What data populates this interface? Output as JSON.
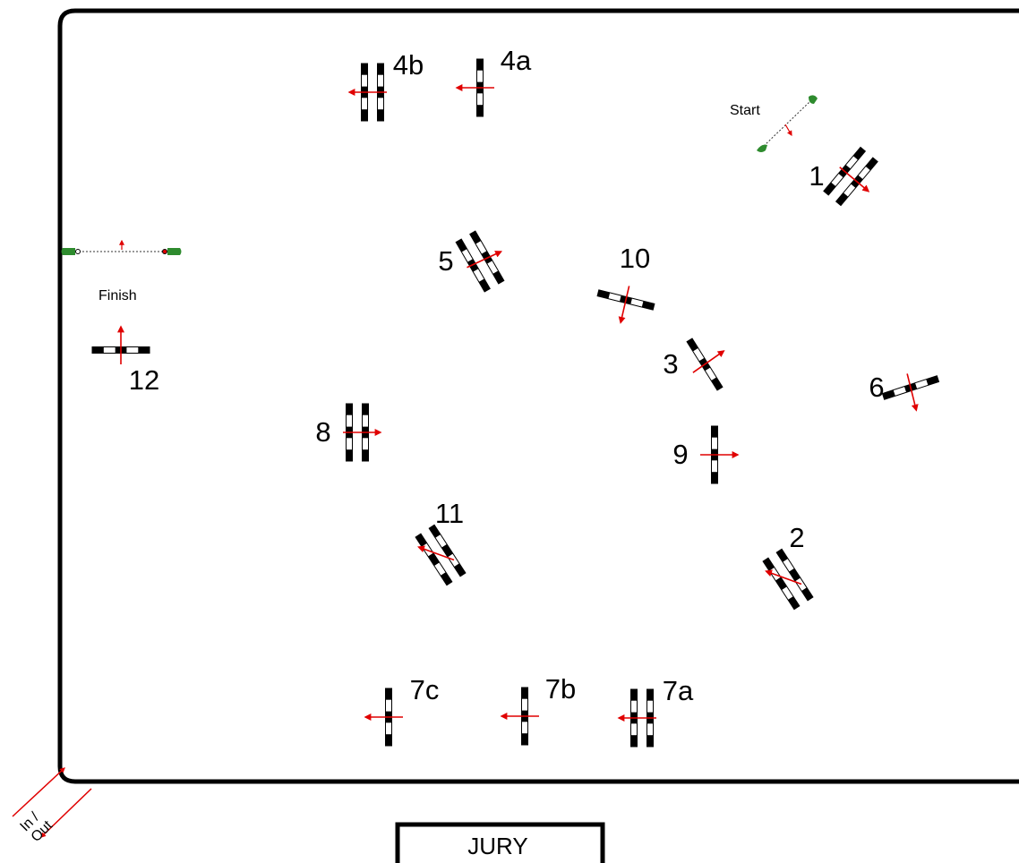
{
  "arena": {
    "jury_label": "JURY",
    "gate_label_line1": "In /",
    "gate_label_line2": "Out"
  },
  "start": {
    "label": "Start"
  },
  "finish": {
    "label": "Finish"
  },
  "colors": {
    "pole_dark": "#000000",
    "pole_light": "#ffffff",
    "arrow": "#e00000",
    "flag": "#2e8b2e",
    "border": "#000000"
  },
  "obstacles": [
    {
      "id": "1",
      "label": "1",
      "type": "oxer",
      "angle_deg": 40,
      "arrow_deg": 40,
      "label_pos": "left"
    },
    {
      "id": "2",
      "label": "2",
      "type": "oxer",
      "angle_deg": -33,
      "arrow_deg": 200,
      "label_pos": "above"
    },
    {
      "id": "3",
      "label": "3",
      "type": "vertical",
      "angle_deg": -32,
      "arrow_deg": 325,
      "label_pos": "left"
    },
    {
      "id": "4a",
      "label": "4a",
      "type": "vertical",
      "angle_deg": 0,
      "arrow_deg": 180,
      "label_pos": "right"
    },
    {
      "id": "4b",
      "label": "4b",
      "type": "oxer",
      "angle_deg": 0,
      "arrow_deg": 180,
      "label_pos": "right"
    },
    {
      "id": "5",
      "label": "5",
      "type": "oxer",
      "angle_deg": -30,
      "arrow_deg": 335,
      "label_pos": "left"
    },
    {
      "id": "6",
      "label": "6",
      "type": "vertical",
      "angle_deg": 72,
      "arrow_deg": 76,
      "label_pos": "left"
    },
    {
      "id": "7a",
      "label": "7a",
      "type": "oxer",
      "angle_deg": 0,
      "arrow_deg": 180,
      "label_pos": "right"
    },
    {
      "id": "7b",
      "label": "7b",
      "type": "vertical",
      "angle_deg": 0,
      "arrow_deg": 180,
      "label_pos": "right"
    },
    {
      "id": "7c",
      "label": "7c",
      "type": "vertical",
      "angle_deg": 0,
      "arrow_deg": 180,
      "label_pos": "right"
    },
    {
      "id": "8",
      "label": "8",
      "type": "oxer",
      "angle_deg": 0,
      "arrow_deg": 0,
      "label_pos": "left"
    },
    {
      "id": "9",
      "label": "9",
      "type": "vertical",
      "angle_deg": 0,
      "arrow_deg": 0,
      "label_pos": "left"
    },
    {
      "id": "10",
      "label": "10",
      "type": "vertical",
      "angle_deg": -76,
      "arrow_deg": 103,
      "label_pos": "above"
    },
    {
      "id": "11",
      "label": "11",
      "type": "oxer",
      "angle_deg": -33,
      "arrow_deg": 200,
      "label_pos": "above"
    },
    {
      "id": "12",
      "label": "12",
      "type": "vertical",
      "angle_deg": 90,
      "arrow_deg": 270,
      "label_pos": "below"
    }
  ]
}
